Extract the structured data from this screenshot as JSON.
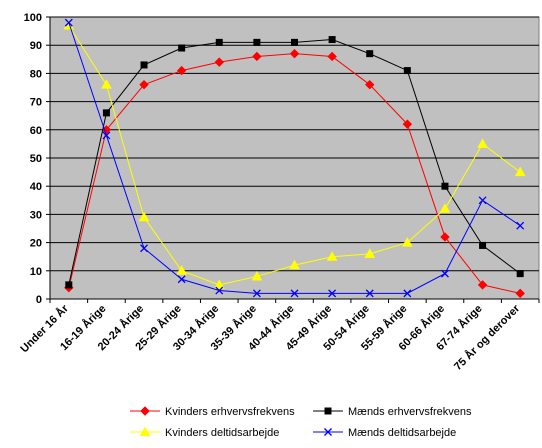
{
  "chart_data": {
    "type": "line",
    "title": "",
    "xlabel": "",
    "ylabel": "",
    "ylim": [
      0,
      100
    ],
    "yticks": [
      0,
      10,
      20,
      30,
      40,
      50,
      60,
      70,
      80,
      90,
      100
    ],
    "grid": "horizontal",
    "plot_background": "#c0c0c0",
    "legend_position": "bottom",
    "categories": [
      "Under 16 År",
      "16-19 Årige",
      "20-24 Årige",
      "25-29 Årige",
      "30-34 Årige",
      "35-39 Årige",
      "40-44 Årige",
      "45-49 Årige",
      "50-54 Årige",
      "55-59 Årige",
      "60-66 Årige",
      "67-74 Årige",
      "75 År og derover"
    ],
    "series": [
      {
        "name": "Kvinders erhvervsfrekvens",
        "color": "#ff0000",
        "marker": "diamond",
        "values": [
          4,
          60,
          76,
          81,
          84,
          86,
          87,
          86,
          76,
          62,
          22,
          5,
          2
        ]
      },
      {
        "name": "Mænds erhvervsfrekvens",
        "color": "#000000",
        "marker": "square",
        "values": [
          5,
          66,
          83,
          89,
          91,
          91,
          91,
          92,
          87,
          81,
          40,
          19,
          9
        ]
      },
      {
        "name": "Kvinders deltidsarbejde",
        "color": "#ffff00",
        "marker": "triangle",
        "values": [
          97,
          76,
          29,
          10,
          5,
          8,
          12,
          15,
          16,
          20,
          32,
          55,
          45
        ]
      },
      {
        "name": "Mænds deltidsarbejde",
        "color": "#0000ff",
        "marker": "x",
        "values": [
          98,
          58,
          18,
          7,
          3,
          2,
          2,
          2,
          2,
          2,
          9,
          35,
          26
        ]
      }
    ]
  }
}
